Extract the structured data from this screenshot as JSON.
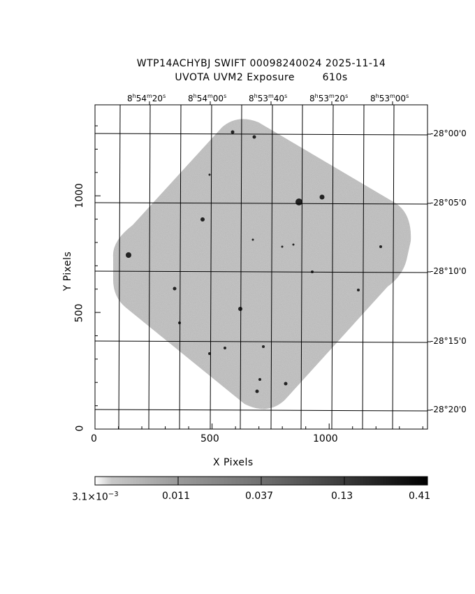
{
  "title_line1": "WTP14ACHYBJ SWIFT 00098240024 2025-11-14",
  "title_line2": "UVOTA UVM2 Exposure        610s",
  "x_axis": {
    "label": "X Pixels",
    "ticks": [
      "0",
      "500",
      "1000"
    ],
    "range": [
      0,
      1420
    ]
  },
  "y_axis": {
    "label": "Y Pixels",
    "ticks": [
      "0",
      "500",
      "1000"
    ],
    "range": [
      0,
      1390
    ]
  },
  "ra_axis": {
    "ticks": [
      {
        "h": "8",
        "m": "54",
        "s": "20"
      },
      {
        "h": "8",
        "m": "54",
        "s": "00"
      },
      {
        "h": "8",
        "m": "53",
        "s": "40"
      },
      {
        "h": "8",
        "m": "53",
        "s": "20"
      },
      {
        "h": "8",
        "m": "53",
        "s": "00"
      }
    ]
  },
  "dec_axis": {
    "ticks": [
      "-28°00'0",
      "-28°05'0",
      "-28°10'0",
      "-28°15'0",
      "-28°20'0"
    ]
  },
  "colorbar": {
    "labels": [
      {
        "base": "3.1×10",
        "exp": "−3"
      },
      {
        "base": "0.011",
        "exp": ""
      },
      {
        "base": "0.037",
        "exp": ""
      },
      {
        "base": "0.13",
        "exp": ""
      },
      {
        "base": "0.41",
        "exp": ""
      }
    ],
    "colors": [
      "#ffffff",
      "#000000"
    ]
  },
  "image": {
    "fill_color": "#9a9a9a",
    "background": "#ffffff"
  }
}
